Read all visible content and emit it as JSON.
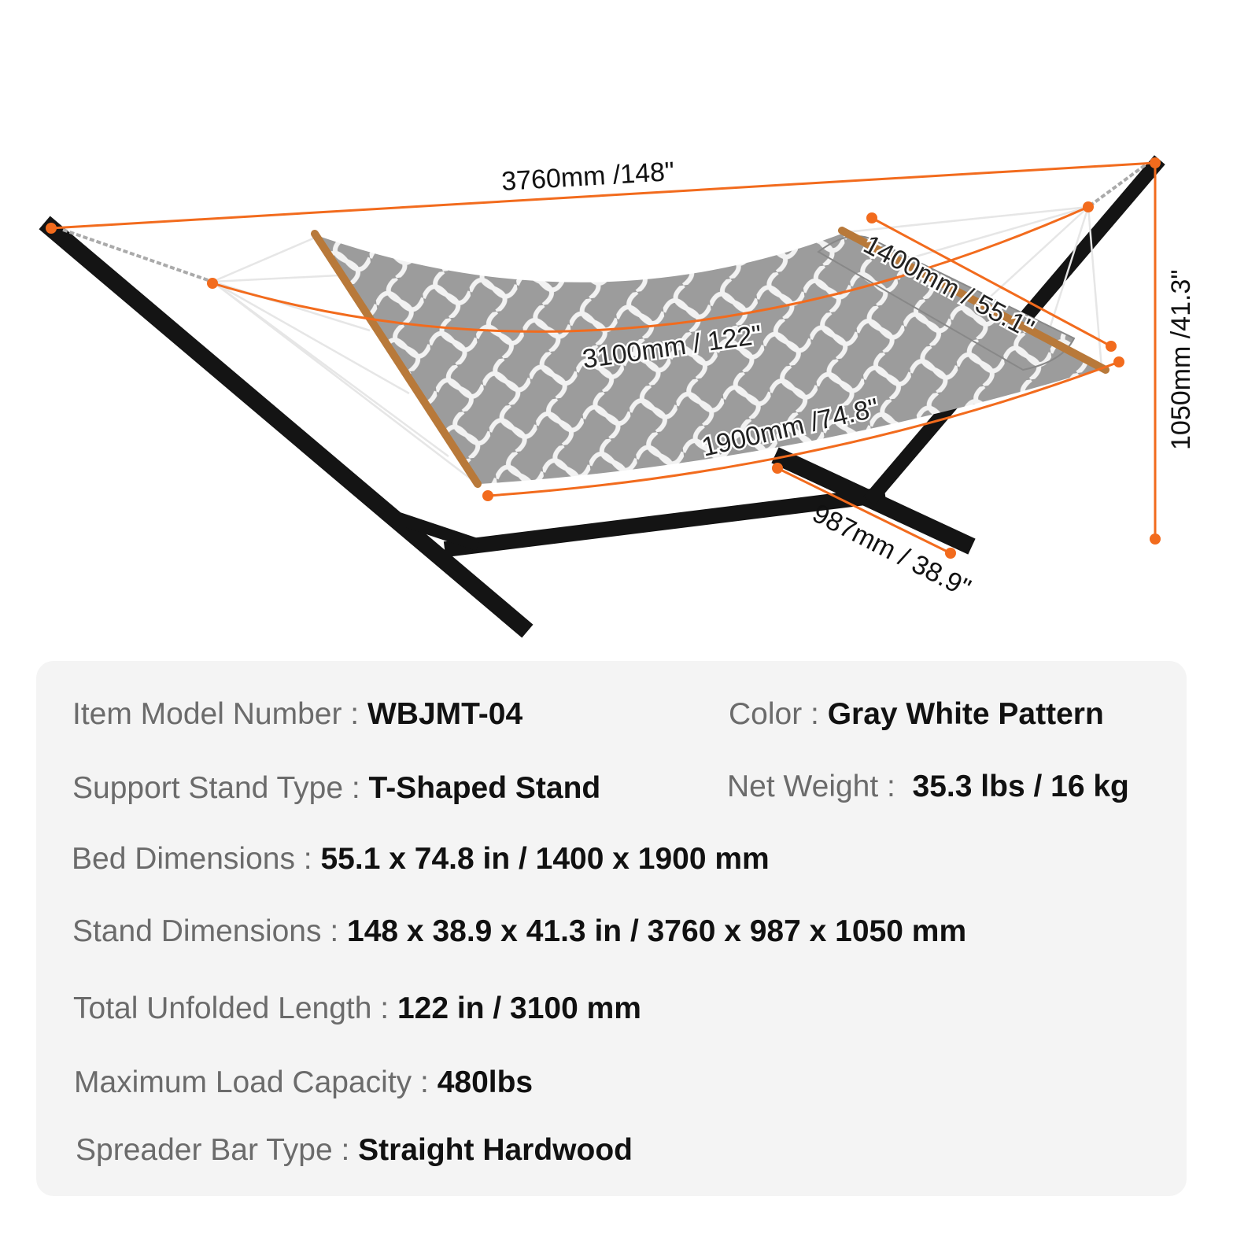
{
  "dimensions": {
    "total_length": "3760mm /148\"",
    "unfolded_length": "3100mm / 122\"",
    "bed_width": "1400mm / 55.1\"",
    "bed_length": "1900mm /74.8\"",
    "base_width": "987mm / 38.9\"",
    "height": "1050mm /41.3\""
  },
  "colors": {
    "dimension_line": "#f26b1d",
    "stand": "#111111",
    "fabric": "#9c9c9c",
    "spreader_bar": "#b8793a",
    "panel": "#f4f4f4"
  },
  "specs": {
    "model": {
      "label": "Item Model Number : ",
      "value": "WBJMT-04"
    },
    "color": {
      "label": "Color : ",
      "value": "Gray White Pattern"
    },
    "stand_type": {
      "label": "Support Stand Type : ",
      "value": "T-Shaped Stand"
    },
    "net_weight": {
      "label": "Net Weight :  ",
      "value": "35.3 lbs / 16 kg"
    },
    "bed_dimensions": {
      "label": "Bed Dimensions : ",
      "value": "55.1 x 74.8 in / 1400 x 1900 mm"
    },
    "stand_dimensions": {
      "label": "Stand Dimensions : ",
      "value": "148 x 38.9 x 41.3 in / 3760 x 987 x 1050 mm"
    },
    "unfolded_length": {
      "label": "Total Unfolded Length : ",
      "value": "122 in / 3100 mm"
    },
    "max_load": {
      "label": "Maximum Load Capacity : ",
      "value": "480lbs"
    },
    "spreader_bar": {
      "label": "Spreader Bar Type : ",
      "value": "Straight Hardwood"
    }
  }
}
